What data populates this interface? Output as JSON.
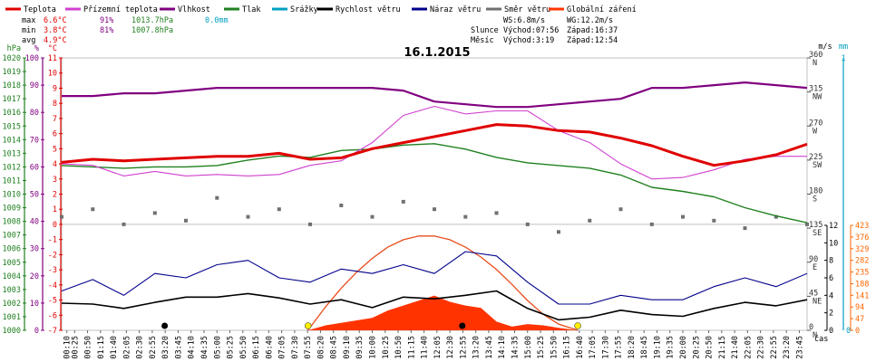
{
  "chart_data": {
    "type": "line",
    "title": "16.1.2015",
    "legend": [
      {
        "label": "Teplota",
        "color": "#e00000"
      },
      {
        "label": "Přízemní teplota",
        "color": "#d040d0"
      },
      {
        "label": "Vlhkost",
        "color": "#800080"
      },
      {
        "label": "Tlak",
        "color": "#208020"
      },
      {
        "label": "Srážky",
        "color": "#00a0c0"
      },
      {
        "label": "Rychlost větru",
        "color": "#000000"
      },
      {
        "label": "Náraz větru",
        "color": "#00008b"
      },
      {
        "label": "Směr větru",
        "color": "#707070"
      },
      {
        "label": "Globální záření",
        "color": "#ff3300"
      }
    ],
    "stats": {
      "rows": [
        {
          "label": "max",
          "temp": "6.6°C",
          "hum": "91%",
          "press": "1013.7hPa",
          "rain": "0.0mm"
        },
        {
          "label": "min",
          "temp": "3.8°C",
          "hum": "81%",
          "press": "1007.8hPa",
          "rain": ""
        },
        {
          "label": "avg",
          "temp": "4.9°C",
          "hum": "",
          "press": "",
          "rain": ""
        }
      ],
      "ws": "WS:6.8m/s",
      "wg": "WG:12.2m/s",
      "sun": {
        "label": "Slunce",
        "rise": "Východ:07:56",
        "set": "Západ:16:37"
      },
      "moon": {
        "label": "Měsíc",
        "rise": "Východ:3:19",
        "set": "Západ:12:54"
      }
    },
    "axes": {
      "hpa": {
        "title": "hPa",
        "ticks": [
          "1020",
          "1019",
          "1018",
          "1017",
          "1016",
          "1015",
          "1014",
          "1013",
          "1012",
          "1011",
          "1010",
          "1009",
          "1008",
          "1007",
          "1006",
          "1005",
          "1004",
          "1003",
          "1002",
          "1001",
          "1000"
        ]
      },
      "pct": {
        "title": "%",
        "ticks": [
          "100",
          "90",
          "80",
          "70",
          "60",
          "50",
          "40",
          "30",
          "20",
          "10",
          "0"
        ]
      },
      "degc": {
        "title": "°C",
        "ticks": [
          "11",
          "10",
          "9",
          "8",
          "7",
          "6",
          "5",
          "4",
          "3",
          "2",
          "1",
          "0",
          "-1",
          "-2",
          "-3",
          "-4",
          "-5",
          "-6",
          "-7"
        ]
      },
      "ms": {
        "title": "m/s",
        "ticks": [
          "12",
          "10",
          "8",
          "6",
          "4",
          "2",
          "0"
        ]
      },
      "mm": {
        "title": "mm",
        "ticks": [
          "1",
          "0"
        ]
      },
      "wdir": {
        "ticks": [
          "360 N",
          "315 NW",
          "270 W",
          "225 SW",
          "180 S",
          "135 SE",
          "90 E",
          "45 NE",
          "0 N"
        ]
      },
      "wm2": {
        "ticks": [
          "423",
          "376",
          "329",
          "282",
          "235",
          "188",
          "141",
          "94",
          "47",
          "0"
        ]
      },
      "x_label": "čas",
      "x_ticks": [
        "00:10",
        "00:25",
        "00:50",
        "01:15",
        "01:40",
        "02:05",
        "02:30",
        "02:55",
        "03:20",
        "03:45",
        "04:10",
        "04:35",
        "05:00",
        "05:25",
        "05:50",
        "06:15",
        "06:40",
        "07:05",
        "07:30",
        "07:55",
        "08:20",
        "08:45",
        "09:10",
        "09:35",
        "10:00",
        "10:25",
        "10:50",
        "11:15",
        "11:40",
        "12:05",
        "12:30",
        "12:55",
        "13:20",
        "13:45",
        "14:10",
        "14:35",
        "15:00",
        "15:25",
        "15:50",
        "16:15",
        "16:40",
        "17:05",
        "17:30",
        "17:55",
        "18:20",
        "18:45",
        "19:10",
        "19:35",
        "20:00",
        "20:25",
        "20:50",
        "21:15",
        "21:40",
        "22:05",
        "22:30",
        "22:55",
        "23:20",
        "23:45"
      ]
    },
    "series": [
      {
        "name": "Teplota",
        "unit": "°C",
        "color": "#e00000",
        "x": [
          0,
          1,
          2,
          3,
          4,
          5,
          6,
          7,
          8,
          9,
          10,
          11,
          12,
          13,
          14,
          15,
          16,
          17,
          18,
          19,
          20,
          21,
          22,
          23,
          24
        ],
        "values": [
          4.1,
          4.3,
          4.2,
          4.3,
          4.4,
          4.5,
          4.5,
          4.7,
          4.3,
          4.4,
          5.0,
          5.4,
          5.8,
          6.2,
          6.6,
          6.5,
          6.2,
          6.1,
          5.7,
          5.2,
          4.5,
          3.9,
          4.2,
          4.6,
          5.3
        ]
      },
      {
        "name": "Přízemní teplota",
        "unit": "°C",
        "color": "#d040d0",
        "x": [
          0,
          1,
          2,
          3,
          4,
          5,
          6,
          7,
          8,
          9,
          10,
          11,
          12,
          13,
          14,
          15,
          16,
          17,
          18,
          19,
          20,
          21,
          22,
          23,
          24
        ],
        "values": [
          4.0,
          3.9,
          3.2,
          3.5,
          3.2,
          3.3,
          3.2,
          3.3,
          3.9,
          4.2,
          5.4,
          7.2,
          7.8,
          7.3,
          7.5,
          7.5,
          6.2,
          5.4,
          4.0,
          3.0,
          3.1,
          3.6,
          4.3,
          4.5,
          4.5
        ]
      },
      {
        "name": "Vlhkost",
        "unit": "%",
        "color": "#800080",
        "x": [
          0,
          1,
          2,
          3,
          4,
          5,
          6,
          7,
          8,
          9,
          10,
          11,
          12,
          13,
          14,
          15,
          16,
          17,
          18,
          19,
          20,
          21,
          22,
          23,
          24
        ],
        "values": [
          86,
          86,
          87,
          87,
          88,
          89,
          89,
          89,
          89,
          89,
          89,
          88,
          84,
          83,
          82,
          82,
          83,
          84,
          85,
          89,
          89,
          90,
          91,
          90,
          89
        ]
      },
      {
        "name": "Tlak",
        "unit": "hPa",
        "color": "#208020",
        "x": [
          0,
          1,
          2,
          3,
          4,
          5,
          6,
          7,
          8,
          9,
          10,
          11,
          12,
          13,
          14,
          15,
          16,
          17,
          18,
          19,
          20,
          21,
          22,
          23,
          24
        ],
        "values": [
          1012.1,
          1012.0,
          1011.9,
          1012.0,
          1012.0,
          1012.1,
          1012.5,
          1012.8,
          1012.7,
          1013.2,
          1013.3,
          1013.6,
          1013.7,
          1013.3,
          1012.7,
          1012.3,
          1012.1,
          1011.9,
          1011.4,
          1010.5,
          1010.2,
          1009.8,
          1009.0,
          1008.4,
          1007.9
        ]
      },
      {
        "name": "Rychlost větru",
        "unit": "m/s",
        "color": "#000000",
        "x": [
          0,
          1,
          2,
          3,
          4,
          5,
          6,
          7,
          8,
          9,
          10,
          11,
          12,
          13,
          14,
          15,
          16,
          17,
          18,
          19,
          20,
          21,
          22,
          23,
          24
        ],
        "values": [
          3.1,
          3.0,
          2.5,
          3.2,
          3.8,
          3.8,
          4.2,
          3.7,
          3.0,
          3.5,
          2.6,
          3.8,
          3.6,
          4.0,
          4.5,
          2.5,
          1.2,
          1.5,
          2.3,
          1.8,
          1.6,
          2.5,
          3.2,
          2.8,
          3.5
        ]
      },
      {
        "name": "Náraz větru",
        "unit": "m/s",
        "color": "#00008b",
        "x": [
          0,
          1,
          2,
          3,
          4,
          5,
          6,
          7,
          8,
          9,
          10,
          11,
          12,
          13,
          14,
          15,
          16,
          17,
          18,
          19,
          20,
          21,
          22,
          23,
          24
        ],
        "values": [
          4.5,
          5.8,
          4.0,
          6.5,
          6.0,
          7.5,
          8.0,
          6.0,
          5.5,
          7.0,
          6.5,
          7.5,
          6.5,
          9.0,
          8.5,
          5.5,
          3.0,
          3.0,
          4.0,
          3.5,
          3.5,
          5.0,
          6.0,
          5.0,
          6.5
        ]
      },
      {
        "name": "Směr větru",
        "unit": "°",
        "color": "#707070",
        "x": [
          0,
          1,
          2,
          3,
          4,
          5,
          6,
          7,
          8,
          9,
          10,
          11,
          12,
          13,
          14,
          15,
          16,
          17,
          18,
          19,
          20,
          21,
          22,
          23,
          24
        ],
        "values": [
          150,
          160,
          140,
          155,
          145,
          175,
          150,
          160,
          140,
          165,
          150,
          170,
          160,
          150,
          155,
          140,
          130,
          145,
          160,
          140,
          150,
          145,
          135,
          150,
          140
        ]
      },
      {
        "name": "Globální záření",
        "unit": "W/m2",
        "color": "#ff3300",
        "x": [
          7.93,
          8.5,
          9,
          9.5,
          10,
          10.5,
          11,
          11.5,
          12,
          12.5,
          13,
          13.5,
          14,
          14.5,
          15,
          15.5,
          16,
          16.62
        ],
        "values": [
          0,
          20,
          30,
          40,
          50,
          80,
          100,
          120,
          140,
          115,
          100,
          90,
          35,
          15,
          25,
          20,
          10,
          0
        ]
      },
      {
        "name": "Teoretické záření",
        "unit": "W/m2",
        "color": "#e84c1a",
        "x": [
          7.93,
          8.5,
          9,
          9.5,
          10,
          10.5,
          11,
          11.5,
          12,
          12.5,
          13,
          13.5,
          14,
          14.5,
          15,
          15.5,
          16,
          16.62
        ],
        "values": [
          0,
          95,
          170,
          235,
          290,
          335,
          365,
          380,
          380,
          365,
          335,
          295,
          245,
          185,
          120,
          65,
          25,
          0
        ]
      }
    ],
    "markers": [
      {
        "name": "Měsíc východ",
        "time": "3:19"
      },
      {
        "name": "Slunce východ",
        "time": "07:56"
      },
      {
        "name": "Měsíc západ",
        "time": "12:54"
      },
      {
        "name": "Slunce západ",
        "time": "16:37"
      }
    ]
  }
}
